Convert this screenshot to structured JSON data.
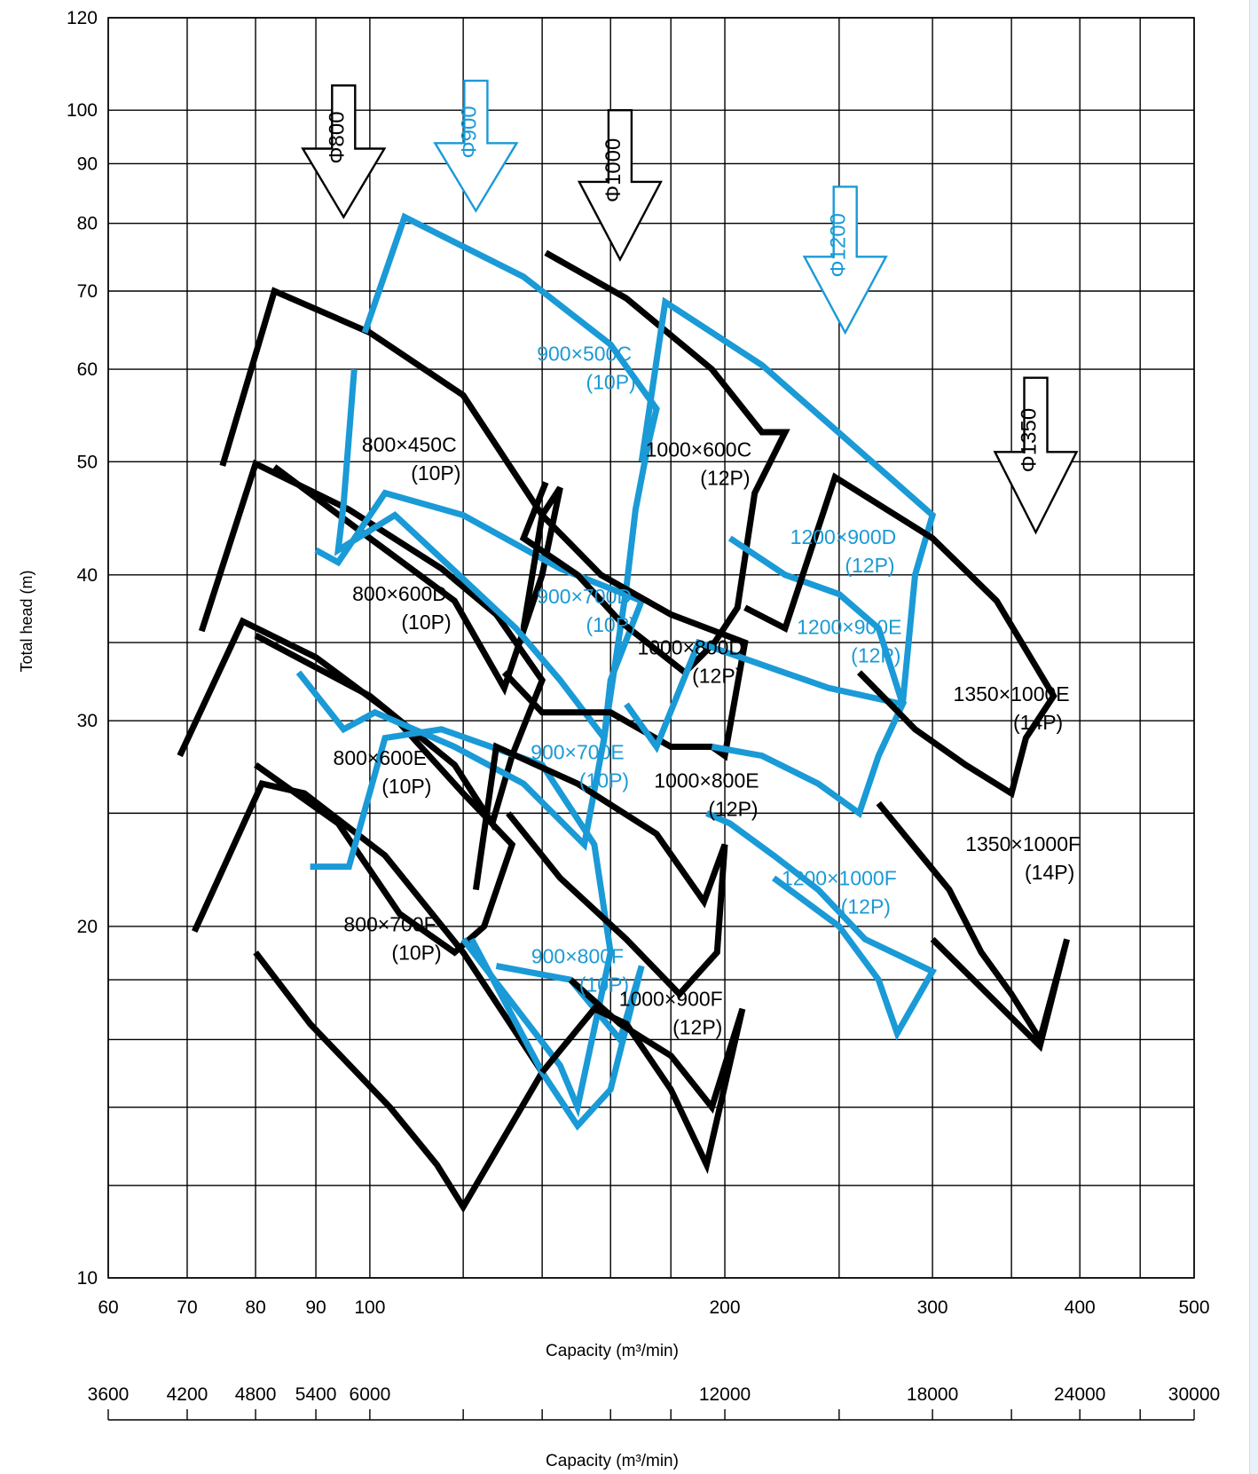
{
  "chart_data": {
    "type": "line",
    "subtype": "pump-selection-chart",
    "scale": {
      "x": "log",
      "y": "log"
    },
    "xlim": [
      60,
      500
    ],
    "ylim": [
      10,
      120
    ],
    "xlabel": "Capacity (m³/min)",
    "ylabel": "Total head (m)",
    "x_ticks": [
      60,
      70,
      80,
      90,
      100,
      200,
      300,
      400,
      500
    ],
    "x_tick_labels": [
      "60",
      "70",
      "80",
      "90",
      "100",
      "200",
      "300",
      "400",
      "500"
    ],
    "x_grid": [
      60,
      70,
      80,
      90,
      100,
      120,
      140,
      160,
      180,
      200,
      250,
      300,
      350,
      400,
      450,
      500
    ],
    "y_ticks": [
      10,
      20,
      30,
      40,
      50,
      60,
      70,
      80,
      90,
      100,
      120
    ],
    "y_tick_labels": [
      "10",
      "20",
      "30",
      "40",
      "50",
      "60",
      "70",
      "80",
      "90",
      "100",
      "120"
    ],
    "y_grid": [
      10,
      12,
      14,
      16,
      18,
      20,
      25,
      30,
      35,
      40,
      50,
      60,
      70,
      80,
      90,
      100,
      120
    ],
    "x2": {
      "label": "Capacity (m³/min)",
      "ticks": [
        60,
        70,
        80,
        90,
        100,
        200,
        300,
        400,
        500
      ],
      "tick_labels": [
        "3600",
        "4200",
        "4800",
        "5400",
        "6000",
        "12000",
        "18000",
        "24000",
        "30000"
      ],
      "minor": [
        120,
        140,
        160,
        180,
        250,
        350,
        450
      ]
    },
    "colors": {
      "black": "#000000",
      "blue": "#1a9ad6"
    },
    "arrows": [
      {
        "label": "Φ800",
        "x": 95,
        "y": [
          105,
          81
        ],
        "color": "black"
      },
      {
        "label": "Φ900",
        "x": 123,
        "y": [
          106,
          82
        ],
        "color": "blue"
      },
      {
        "label": "Φ1000",
        "x": 163,
        "y": [
          100,
          74.5
        ],
        "color": "black"
      },
      {
        "label": "Φ1200",
        "x": 253,
        "y": [
          86,
          64.5
        ],
        "color": "blue"
      },
      {
        "label": "Φ1350",
        "x": 367,
        "y": [
          59,
          43.5
        ],
        "color": "black"
      }
    ],
    "series": [
      {
        "label": [
          "800×450C",
          "(10P)"
        ],
        "label_at": [
          108,
          51
        ],
        "color": "black",
        "width": 7,
        "points": [
          [
            75,
            49.6
          ],
          [
            83,
            70
          ],
          [
            100,
            64.5
          ],
          [
            120,
            57
          ],
          [
            140,
            45
          ],
          [
            145,
            47.5
          ],
          [
            140,
            40
          ],
          [
            130,
            32
          ],
          [
            118,
            38
          ],
          [
            100,
            43
          ],
          [
            83,
            49.5
          ]
        ]
      },
      {
        "label": [
          "800×600D",
          "(10P)"
        ],
        "label_at": [
          106,
          38
        ],
        "color": "black",
        "width": 7,
        "points": [
          [
            72,
            35.8
          ],
          [
            80,
            49.8
          ],
          [
            96,
            45.5
          ],
          [
            115,
            40.5
          ],
          [
            128,
            37
          ],
          [
            140,
            32.5
          ],
          [
            132,
            28
          ],
          [
            127,
            24.5
          ],
          [
            118,
            27.5
          ],
          [
            100,
            31.5
          ],
          [
            80,
            35.5
          ]
        ]
      },
      {
        "label": [
          "800×600E",
          "(10P)"
        ],
        "label_at": [
          102,
          27.5
        ],
        "color": "black",
        "width": 7,
        "points": [
          [
            69,
            28
          ],
          [
            78,
            36.5
          ],
          [
            90,
            34
          ],
          [
            104,
            30.5
          ],
          [
            120,
            26
          ],
          [
            132,
            23.5
          ],
          [
            125,
            20
          ],
          [
            118,
            19
          ],
          [
            106,
            20.5
          ],
          [
            94,
            24.5
          ],
          [
            80,
            27.5
          ]
        ]
      },
      {
        "label": [
          "800×700F",
          "(10P)"
        ],
        "label_at": [
          104,
          19.8
        ],
        "color": "black",
        "width": 7,
        "points": [
          [
            71,
            19.8
          ],
          [
            81,
            26.5
          ],
          [
            88,
            26
          ],
          [
            103,
            23
          ],
          [
            120,
            19
          ],
          [
            140,
            15
          ],
          [
            120,
            11.5
          ],
          [
            114,
            12.5
          ],
          [
            104,
            14
          ],
          [
            89,
            16.5
          ],
          [
            80,
            19
          ]
        ]
      },
      {
        "label": [
          "900×500C",
          "(10P)"
        ],
        "label_at": [
          152,
          61
        ],
        "color": "blue",
        "width": 7,
        "points": [
          [
            99,
            64.5
          ],
          [
            107,
            81
          ],
          [
            135,
            72
          ],
          [
            160,
            63
          ],
          [
            175,
            55.5
          ],
          [
            172,
            51.5
          ],
          [
            168,
            45.5
          ],
          [
            165,
            39
          ],
          [
            158,
            29
          ],
          [
            145,
            32.5
          ],
          [
            133,
            36
          ],
          [
            113,
            42
          ],
          [
            105,
            45
          ],
          [
            94,
            42
          ],
          [
            95,
            46
          ],
          [
            97,
            60
          ]
        ]
      },
      {
        "label": [
          "900×700D",
          "(10P)"
        ],
        "label_at": [
          152,
          37.8
        ],
        "color": "blue",
        "width": 7,
        "points": [
          [
            90,
            42
          ],
          [
            94,
            41
          ],
          [
            103,
            47
          ],
          [
            120,
            45
          ],
          [
            145,
            40.5
          ],
          [
            170,
            38
          ],
          [
            160,
            32.5
          ],
          [
            158,
            29
          ],
          [
            152,
            23.5
          ],
          [
            135,
            26.5
          ],
          [
            118,
            28.5
          ],
          [
            101,
            30.5
          ],
          [
            95,
            29.5
          ],
          [
            87,
            33
          ]
        ]
      },
      {
        "label": [
          "900×700E",
          "(10P)"
        ],
        "label_at": [
          150,
          27.8
        ],
        "color": "blue",
        "width": 7,
        "points": [
          [
            89,
            22.5
          ],
          [
            96,
            22.5
          ],
          [
            103,
            29
          ],
          [
            115,
            29.5
          ],
          [
            140,
            27.5
          ],
          [
            155,
            23.5
          ],
          [
            160,
            19
          ],
          [
            150,
            14
          ],
          [
            145,
            15.2
          ],
          [
            120,
            19.5
          ]
        ]
      },
      {
        "label": [
          "900×800F",
          "(10P)"
        ],
        "label_at": [
          150,
          18.6
        ],
        "color": "blue",
        "width": 7,
        "points": [
          [
            122,
            19.5
          ],
          [
            140,
            15
          ],
          [
            150,
            13.5
          ],
          [
            160,
            14.5
          ],
          [
            170,
            18.5
          ],
          [
            163,
            16
          ],
          [
            148,
            18
          ],
          [
            128,
            18.5
          ]
        ]
      },
      {
        "label": [
          "1000×600C",
          "(12P)"
        ],
        "label_at": [
          190,
          50.5
        ],
        "color": "black",
        "width": 7,
        "points": [
          [
            141,
            75.5
          ],
          [
            165,
            69
          ],
          [
            195,
            60
          ],
          [
            215,
            53
          ],
          [
            225,
            53
          ],
          [
            212,
            47
          ],
          [
            205,
            37.5
          ],
          [
            196,
            35
          ],
          [
            185,
            33
          ],
          [
            163,
            36.5
          ],
          [
            150,
            40
          ],
          [
            135,
            43
          ],
          [
            141,
            48
          ]
        ]
      },
      {
        "label": [
          "1000×800D",
          "(12P)"
        ],
        "label_at": [
          187,
          34.2
        ],
        "color": "black",
        "width": 7,
        "points": [
          [
            135,
            36
          ],
          [
            140,
            45
          ],
          [
            157,
            40
          ],
          [
            180,
            37
          ],
          [
            208,
            35
          ],
          [
            200,
            28
          ],
          [
            195,
            28.5
          ],
          [
            180,
            28.5
          ],
          [
            160,
            30.5
          ],
          [
            140,
            30.5
          ],
          [
            130,
            33
          ]
        ]
      },
      {
        "label": [
          "1000×800E",
          "(12P)"
        ],
        "label_at": [
          193,
          26.3
        ],
        "color": "black",
        "width": 7,
        "points": [
          [
            123,
            21.5
          ],
          [
            128,
            28.5
          ],
          [
            150,
            26.5
          ],
          [
            175,
            24
          ],
          [
            192,
            21
          ],
          [
            200,
            23.5
          ],
          [
            197,
            19
          ],
          [
            183,
            17.5
          ],
          [
            165,
            19.5
          ],
          [
            145,
            22
          ],
          [
            131,
            25
          ]
        ]
      },
      {
        "label": [
          "1000×900F",
          "(12P)"
        ],
        "label_at": [
          180,
          17.1
        ],
        "color": "black",
        "width": 7,
        "points": [
          [
            140,
            15
          ],
          [
            155,
            17
          ],
          [
            165,
            16.5
          ],
          [
            180,
            14.5
          ],
          [
            193,
            12.5
          ],
          [
            207,
            17
          ],
          [
            195,
            14
          ],
          [
            180,
            15.5
          ],
          [
            163,
            16.5
          ],
          [
            148,
            18
          ]
        ]
      },
      {
        "label": [
          "1200×900D",
          "(12P)"
        ],
        "label_at": [
          252,
          42.5
        ],
        "color": "blue",
        "width": 7,
        "points": [
          [
            170,
            50
          ],
          [
            178,
            68.5
          ],
          [
            215,
            60.5
          ],
          [
            255,
            52
          ],
          [
            300,
            45
          ],
          [
            290,
            40
          ],
          [
            283,
            31
          ],
          [
            270,
            36
          ],
          [
            250,
            38.5
          ],
          [
            225,
            40
          ],
          [
            202,
            43
          ]
        ]
      },
      {
        "label": [
          "1200×900E",
          "(12P)"
        ],
        "label_at": [
          255,
          35.6
        ],
        "color": "blue",
        "width": 7,
        "points": [
          [
            165,
            31
          ],
          [
            175,
            28.5
          ],
          [
            190,
            35
          ],
          [
            215,
            33.5
          ],
          [
            245,
            32
          ],
          [
            283,
            31
          ],
          [
            270,
            28
          ],
          [
            260,
            25
          ],
          [
            240,
            26.5
          ],
          [
            215,
            28
          ],
          [
            195,
            28.5
          ]
        ]
      },
      {
        "label": [
          "1200×1000F",
          "(12P)"
        ],
        "label_at": [
          250,
          21.7
        ],
        "color": "blue",
        "width": 7,
        "points": [
          [
            193,
            25
          ],
          [
            202,
            24.5
          ],
          [
            220,
            23
          ],
          [
            240,
            21.5
          ],
          [
            263,
            19.5
          ],
          [
            300,
            18.3
          ],
          [
            280,
            16.2
          ],
          [
            270,
            18
          ],
          [
            250,
            20
          ],
          [
            220,
            22
          ]
        ]
      },
      {
        "label": [
          "1350×1000E",
          "(14P)"
        ],
        "label_at": [
          350,
          31.2
        ],
        "color": "black",
        "width": 7,
        "points": [
          [
            208,
            37.5
          ],
          [
            225,
            36
          ],
          [
            248,
            48.5
          ],
          [
            300,
            43
          ],
          [
            340,
            38
          ],
          [
            380,
            31.5
          ],
          [
            360,
            29
          ],
          [
            350,
            26
          ],
          [
            320,
            27.5
          ],
          [
            290,
            29.5
          ],
          [
            260,
            33
          ]
        ]
      },
      {
        "label": [
          "1350×1000F",
          "(14P)"
        ],
        "label_at": [
          358,
          23.2
        ],
        "color": "black",
        "width": 7,
        "points": [
          [
            270,
            25.5
          ],
          [
            310,
            21.5
          ],
          [
            330,
            19
          ],
          [
            350,
            17.5
          ],
          [
            370,
            16
          ],
          [
            390,
            19.5
          ],
          [
            370,
            15.8
          ],
          [
            340,
            17.2
          ],
          [
            300,
            19.5
          ]
        ]
      }
    ]
  }
}
